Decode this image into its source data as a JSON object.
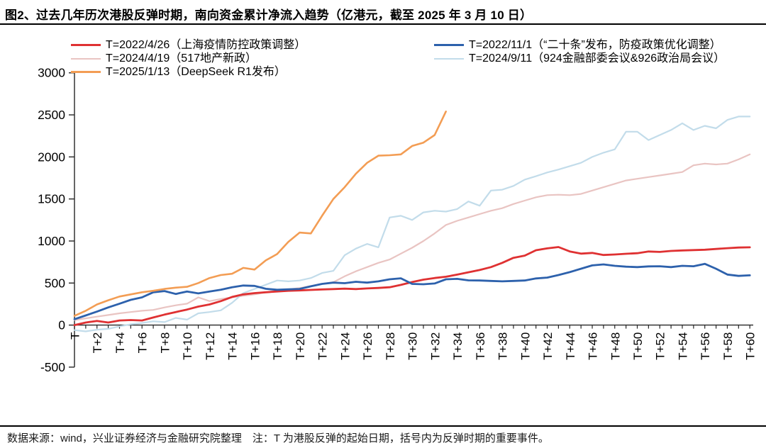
{
  "title": "图2、过去几年历次港股反弹时期，南向资金累计净流入趋势（亿港元，截至 2025 年 3 月 10 日）",
  "footer": "数据来源：wind，兴业证券经济与金融研究院整理　注：T 为港股反弹的起始日期，括号内为反弹时期的重要事件。",
  "chart_data": {
    "type": "line",
    "title": "南向资金累计净流入趋势（亿港元）",
    "xlabel": "",
    "ylabel": "",
    "x_range": [
      0,
      60
    ],
    "ylim": [
      -500,
      3000
    ],
    "yticks": [
      -500,
      0,
      500,
      1000,
      1500,
      2000,
      2500,
      3000
    ],
    "xtick_labels": [
      "T",
      "T+2",
      "T+4",
      "T+6",
      "T+8",
      "T+10",
      "T+12",
      "T+14",
      "T+16",
      "T+18",
      "T+20",
      "T+22",
      "T+24",
      "T+26",
      "T+28",
      "T+30",
      "T+32",
      "T+34",
      "T+36",
      "T+38",
      "T+40",
      "T+42",
      "T+44",
      "T+46",
      "T+48",
      "T+50",
      "T+52",
      "T+54",
      "T+56",
      "T+58",
      "T+60"
    ],
    "grid": false,
    "legend_position": "top",
    "axis_color": "#262626",
    "series": [
      {
        "name": "T=2022/4/26（上海疫情防控政策调整）",
        "color": "#df3132",
        "line_width": 2.8,
        "values": [
          0,
          30,
          50,
          30,
          55,
          60,
          55,
          90,
          125,
          155,
          185,
          220,
          245,
          285,
          335,
          365,
          380,
          390,
          400,
          408,
          412,
          418,
          424,
          428,
          433,
          428,
          436,
          442,
          450,
          478,
          512,
          540,
          560,
          575,
          600,
          628,
          655,
          690,
          740,
          800,
          826,
          890,
          912,
          928,
          876,
          850,
          858,
          834,
          840,
          848,
          855,
          875,
          870,
          882,
          888,
          892,
          896,
          905,
          915,
          922,
          925
        ]
      },
      {
        "name": "T=2024/4/19（517地产新政）",
        "color": "#e9c4c2",
        "line_width": 2.2,
        "values": [
          60,
          80,
          100,
          120,
          140,
          155,
          170,
          180,
          210,
          235,
          255,
          330,
          285,
          310,
          330,
          350,
          365,
          390,
          410,
          425,
          440,
          465,
          490,
          510,
          580,
          640,
          690,
          740,
          780,
          850,
          920,
          1000,
          1090,
          1190,
          1240,
          1280,
          1320,
          1360,
          1390,
          1440,
          1480,
          1520,
          1545,
          1550,
          1545,
          1560,
          1600,
          1640,
          1680,
          1720,
          1740,
          1760,
          1780,
          1800,
          1820,
          1900,
          1920,
          1910,
          1920,
          1970,
          2030
        ]
      },
      {
        "name": "T=2025/1/13（DeepSeek R1发布）",
        "color": "#f39d54",
        "line_width": 2.6,
        "values": [
          110,
          170,
          245,
          295,
          340,
          365,
          390,
          408,
          430,
          445,
          455,
          500,
          560,
          595,
          610,
          680,
          660,
          770,
          845,
          990,
          1100,
          1090,
          1300,
          1500,
          1640,
          1800,
          1930,
          2015,
          2020,
          2030,
          2130,
          2170,
          2260,
          2540
        ]
      },
      {
        "name": "T=2022/11/1（“二十条”发布，防疫政策优化调整）",
        "color": "#2d61ac",
        "line_width": 2.8,
        "values": [
          70,
          115,
          160,
          210,
          255,
          300,
          330,
          390,
          405,
          370,
          400,
          377,
          400,
          420,
          450,
          470,
          466,
          432,
          420,
          425,
          430,
          461,
          490,
          505,
          498,
          515,
          505,
          520,
          545,
          556,
          490,
          486,
          495,
          545,
          550,
          532,
          530,
          525,
          520,
          525,
          530,
          555,
          565,
          595,
          630,
          670,
          710,
          722,
          705,
          695,
          690,
          698,
          700,
          690,
          705,
          700,
          728,
          670,
          601,
          585,
          592
        ]
      },
      {
        "name": "T=2024/9/11（924金融部委会议&926政治局会议）",
        "color": "#c2dcea",
        "line_width": 2.2,
        "values": [
          -60,
          -75,
          -55,
          -45,
          -15,
          10,
          25,
          45,
          35,
          85,
          65,
          140,
          155,
          175,
          265,
          380,
          430,
          480,
          530,
          520,
          530,
          560,
          620,
          645,
          830,
          910,
          965,
          925,
          1280,
          1300,
          1250,
          1340,
          1360,
          1350,
          1380,
          1470,
          1420,
          1600,
          1610,
          1655,
          1730,
          1770,
          1815,
          1850,
          1890,
          1930,
          2000,
          2050,
          2090,
          2300,
          2300,
          2200,
          2260,
          2320,
          2400,
          2320,
          2370,
          2340,
          2440,
          2480,
          2480
        ]
      }
    ]
  }
}
